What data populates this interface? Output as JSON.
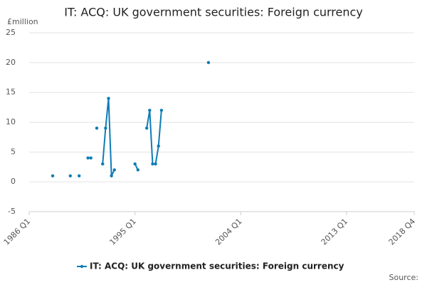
{
  "chart_data": {
    "type": "line",
    "title": "IT: ACQ: UK government securities: Foreign currency",
    "y_label": "£million",
    "source": "Source:",
    "x": [
      "1988 Q1",
      "1988 Q2",
      "1989 Q3",
      "1989 Q4",
      "1990 Q2",
      "1990 Q3",
      "1991 Q1",
      "1991 Q2",
      "1991 Q3",
      "1991 Q4",
      "1992 Q1",
      "1992 Q2",
      "1992 Q3",
      "1992 Q4",
      "1993 Q1",
      "1993 Q2",
      "1993 Q3",
      "1995 Q1",
      "1995 Q2",
      "1995 Q3",
      "1996 Q1",
      "1996 Q2",
      "1996 Q3",
      "1996 Q4",
      "1997 Q1",
      "1997 Q2",
      "1997 Q3",
      "2001 Q2"
    ],
    "series": [
      {
        "name": "IT: ACQ: UK government securities: Foreign currency",
        "color": "#0f7cb6",
        "values": [
          1,
          null,
          1,
          null,
          1,
          null,
          4,
          4,
          null,
          9,
          null,
          3,
          9,
          14,
          1,
          2,
          null,
          3,
          2,
          null,
          9,
          12,
          3,
          3,
          6,
          12,
          null,
          20
        ]
      }
    ],
    "xlim": [
      "1986 Q1",
      "2018 Q4"
    ],
    "xticks": [
      "1986 Q1",
      "1995 Q1",
      "2004 Q1",
      "2013 Q1",
      "2018 Q4"
    ],
    "ylim": [
      -5,
      25
    ],
    "yticks": [
      -5,
      0,
      5,
      10,
      15,
      20,
      25
    ],
    "grid": true
  }
}
